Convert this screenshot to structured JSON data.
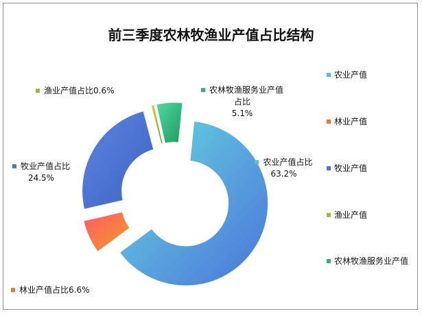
{
  "chart_data": {
    "type": "pie",
    "title": "前三季度农林牧渔业产值占比结构",
    "categories": [
      "农业产值",
      "林业产值",
      "牧业产值",
      "渔业产值",
      "农林牧渔服务业产值"
    ],
    "values": [
      63.2,
      6.6,
      24.5,
      0.6,
      5.1
    ],
    "unit": "%",
    "colors": [
      "#4fc3d4",
      "#f0743a",
      "#4e72d0",
      "#a9b63a",
      "#34b27a"
    ],
    "data_labels": [
      {
        "name": "农业产值占比",
        "value": "63.2%"
      },
      {
        "name": "林业产值占比",
        "value": "6.6%"
      },
      {
        "name": "牧业产值占比",
        "value": "24.5%"
      },
      {
        "name": "渔业产值占比",
        "value": "0.6%"
      },
      {
        "name": "农林牧渔服务业产值占比",
        "value": "5.1%"
      }
    ],
    "legend_position": "right",
    "legend": [
      "农业产值",
      "林业产值",
      "牧业产值",
      "渔业产值",
      "农林牧渔服务业产值"
    ],
    "style": "doughnut, exploded"
  }
}
